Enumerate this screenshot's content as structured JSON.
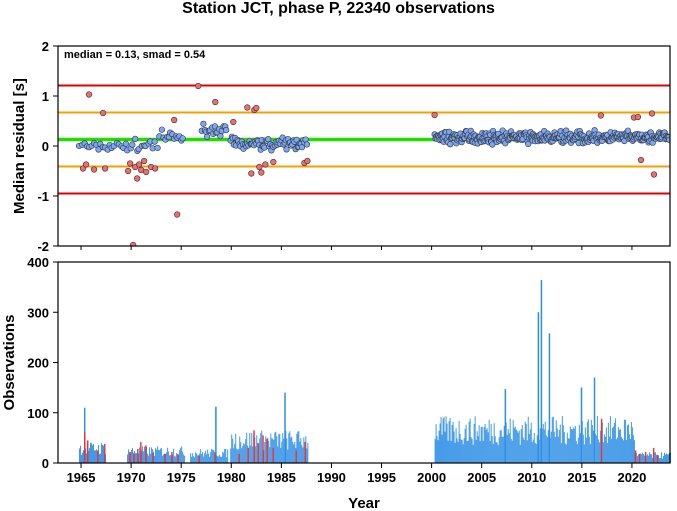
{
  "title": "Station JCT, phase P, 22340 observations",
  "chart_data": [
    {
      "type": "scatter",
      "ylabel": "Median residual [s]",
      "annotation": "median = 0.13, smad = 0.54",
      "xlim": [
        1962.7,
        2023.8
      ],
      "ylim": [
        -2,
        2
      ],
      "yticks": [
        "-2",
        "-1",
        "0",
        "1",
        "2"
      ],
      "grid": false,
      "reference_lines": [
        {
          "y": 1.21,
          "color": "#e00000"
        },
        {
          "y": 0.67,
          "color": "#f5a000"
        },
        {
          "y": 0.13,
          "color": "#22dd00"
        },
        {
          "y": -0.41,
          "color": "#f5a000"
        },
        {
          "y": -0.95,
          "color": "#e00000"
        }
      ],
      "colors": {
        "inlier": "#7aa7f7",
        "outlier": "#f36c6c",
        "edge": "#333333"
      },
      "outliers": [
        [
          1965.2,
          -0.45
        ],
        [
          1965.5,
          -0.37
        ],
        [
          1965.8,
          1.03
        ],
        [
          1966.3,
          -0.47
        ],
        [
          1967.2,
          0.66
        ],
        [
          1967.4,
          -0.45
        ],
        [
          1969.7,
          -0.5
        ],
        [
          1969.9,
          -0.35
        ],
        [
          1970.2,
          -1.98
        ],
        [
          1970.4,
          -0.42
        ],
        [
          1970.6,
          -0.65
        ],
        [
          1970.8,
          -0.37
        ],
        [
          1971.0,
          -0.48
        ],
        [
          1971.3,
          -0.3
        ],
        [
          1971.5,
          -0.52
        ],
        [
          1972.0,
          -0.42
        ],
        [
          1972.4,
          -0.45
        ],
        [
          1974.3,
          0.52
        ],
        [
          1974.6,
          -1.37
        ],
        [
          1976.7,
          1.2
        ],
        [
          1978.4,
          0.88
        ],
        [
          1980.2,
          0.48
        ],
        [
          1981.6,
          0.77
        ],
        [
          1982.0,
          -0.55
        ],
        [
          1982.3,
          0.72
        ],
        [
          1982.5,
          0.76
        ],
        [
          1982.8,
          -0.42
        ],
        [
          1983.0,
          -0.53
        ],
        [
          1983.4,
          -0.37
        ],
        [
          1984.2,
          -0.32
        ],
        [
          1987.3,
          -0.34
        ],
        [
          1987.6,
          -0.3
        ],
        [
          2000.3,
          0.62
        ],
        [
          2016.9,
          0.61
        ],
        [
          2020.2,
          0.57
        ],
        [
          2020.6,
          0.58
        ],
        [
          2020.9,
          -0.28
        ],
        [
          2022.0,
          0.65
        ],
        [
          2022.2,
          -0.57
        ]
      ],
      "inlier_segments": [
        [
          1964.8,
          1972.8,
          35,
          0.01
        ],
        [
          1972.8,
          1975.3,
          14,
          0.18
        ],
        [
          1977.0,
          1979.6,
          18,
          0.33
        ],
        [
          1979.9,
          1987.6,
          70,
          0.05
        ],
        [
          2000.3,
          2023.8,
          340,
          0.17
        ]
      ]
    },
    {
      "type": "bar",
      "xlabel": "Year",
      "ylabel": "Observations",
      "xlim": [
        1962.7,
        2023.8
      ],
      "ylim": [
        0,
        400
      ],
      "yticks": [
        "0",
        "100",
        "200",
        "300",
        "400"
      ],
      "xticks": [
        "1965",
        "1970",
        "1975",
        "1980",
        "1985",
        "1990",
        "1995",
        "2000",
        "2005",
        "2010",
        "2015",
        "2020"
      ],
      "grid": false,
      "colors": {
        "bars": "#2e8fe5",
        "highlight": "#f03030"
      },
      "peaks": [
        [
          1965.3,
          110
        ],
        [
          1978.4,
          112
        ],
        [
          1985.3,
          140
        ],
        [
          2007.3,
          147
        ],
        [
          2010.6,
          300
        ],
        [
          2010.9,
          364
        ],
        [
          2011.7,
          258
        ],
        [
          2014.9,
          150
        ],
        [
          2016.2,
          170
        ]
      ],
      "segments": [
        [
          1964.8,
          1967.4,
          35,
          1
        ],
        [
          1969.6,
          1975.3,
          28,
          1
        ],
        [
          1975.9,
          1979.6,
          24,
          1
        ],
        [
          1979.9,
          1987.6,
          55,
          1
        ],
        [
          2000.3,
          2020.2,
          78,
          1
        ],
        [
          2020.2,
          2023.8,
          18,
          1
        ]
      ],
      "red_spikes": [
        [
          1965.3,
          62
        ],
        [
          1965.6,
          45
        ],
        [
          1966.6,
          25
        ],
        [
          1967.3,
          38
        ],
        [
          1969.8,
          22
        ],
        [
          1970.2,
          18
        ],
        [
          1970.6,
          28
        ],
        [
          1970.9,
          42
        ],
        [
          1971.4,
          35
        ],
        [
          1972.1,
          20
        ],
        [
          1973.3,
          18
        ],
        [
          1974.0,
          22
        ],
        [
          1974.6,
          18
        ],
        [
          1976.7,
          14
        ],
        [
          1978.3,
          20
        ],
        [
          1980.7,
          18
        ],
        [
          1981.6,
          30
        ],
        [
          1982.2,
          65
        ],
        [
          1982.6,
          40
        ],
        [
          1983.1,
          55
        ],
        [
          1983.5,
          48
        ],
        [
          1984.1,
          30
        ],
        [
          1986.4,
          25
        ],
        [
          1987.3,
          42
        ],
        [
          2016.9,
          88
        ],
        [
          2020.3,
          25
        ],
        [
          2020.7,
          18
        ],
        [
          2021.3,
          22
        ],
        [
          2022.1,
          30
        ],
        [
          2022.5,
          16
        ]
      ]
    }
  ]
}
